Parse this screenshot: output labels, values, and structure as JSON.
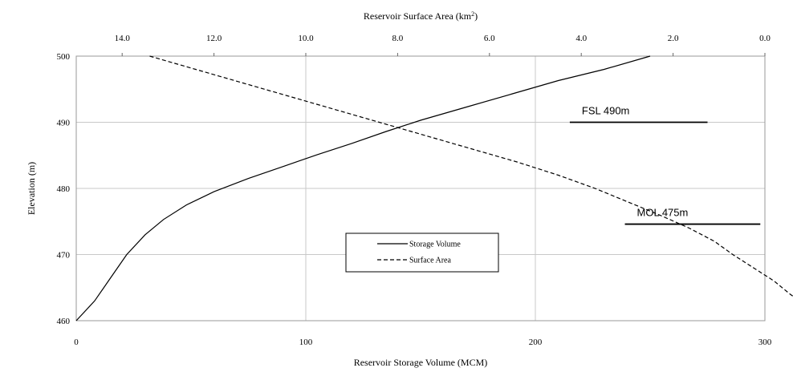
{
  "chart_data": {
    "type": "line",
    "title_top_axis": "Reservoir Surface Area (km",
    "title_top_axis_sup": "2",
    "title_top_axis_close": ")",
    "xlabel": "Reservoir Storage Volume (MCM)",
    "ylabel": "Elevation (m)",
    "x_bottom_range": [
      0,
      300
    ],
    "x_bottom_ticks": [
      "0",
      "100",
      "200",
      "300"
    ],
    "x_top_range": [
      15.0,
      0.0
    ],
    "x_top_ticks": [
      "14.0",
      "12.0",
      "10.0",
      "8.0",
      "6.0",
      "4.0",
      "2.0",
      "0.0"
    ],
    "y_range": [
      460,
      500
    ],
    "y_ticks": [
      "460",
      "470",
      "480",
      "490",
      "500"
    ],
    "grid": true,
    "legend_placement": "lower-center",
    "series": [
      {
        "name": "Storage Volume",
        "axis": "bottom",
        "style": "solid",
        "points": [
          [
            0,
            460
          ],
          [
            8,
            463
          ],
          [
            15,
            466.5
          ],
          [
            22,
            470
          ],
          [
            30,
            473
          ],
          [
            38,
            475.3
          ],
          [
            48,
            477.5
          ],
          [
            60,
            479.5
          ],
          [
            75,
            481.5
          ],
          [
            90,
            483.3
          ],
          [
            105,
            485.1
          ],
          [
            120,
            486.8
          ],
          [
            135,
            488.6
          ],
          [
            150,
            490.3
          ],
          [
            170,
            492.3
          ],
          [
            190,
            494.3
          ],
          [
            210,
            496.3
          ],
          [
            230,
            498
          ],
          [
            250,
            500
          ]
        ]
      },
      {
        "name": "Surface Area",
        "axis": "top",
        "style": "dashed",
        "points": [
          [
            13.4,
            500
          ],
          [
            12.4,
            498
          ],
          [
            11.4,
            496
          ],
          [
            10.4,
            494
          ],
          [
            9.4,
            492
          ],
          [
            8.4,
            490
          ],
          [
            7.4,
            488
          ],
          [
            6.4,
            486
          ],
          [
            5.4,
            484
          ],
          [
            4.5,
            482
          ],
          [
            3.7,
            480
          ],
          [
            3.0,
            478
          ],
          [
            2.3,
            476
          ],
          [
            1.65,
            474
          ],
          [
            1.1,
            472
          ],
          [
            0.7,
            470
          ],
          [
            0.25,
            468
          ],
          [
            -0.2,
            466
          ],
          [
            -0.55,
            464
          ],
          [
            -0.95,
            462
          ],
          [
            -1.3,
            460
          ]
        ]
      }
    ],
    "annotations": [
      {
        "label": "FSL 490m",
        "elevation": 490,
        "x_from": 215,
        "x_to": 275
      },
      {
        "label": "MOL 475m",
        "elevation": 474.6,
        "x_from": 239,
        "x_to": 298
      }
    ],
    "colors": {
      "line": "#000000",
      "grid": "#c8c8c8",
      "axis": "#999999",
      "text": "#000000"
    }
  }
}
